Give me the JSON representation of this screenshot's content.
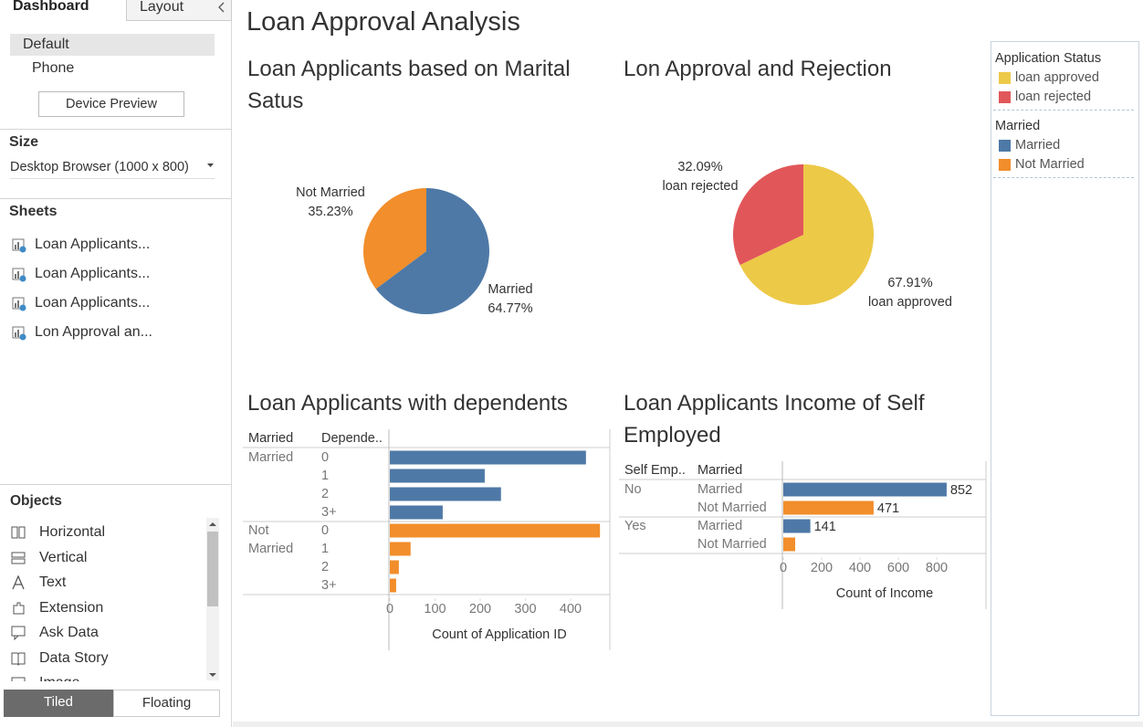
{
  "sidebar": {
    "tabs": [
      "Dashboard",
      "Layout"
    ],
    "device": {
      "options": [
        "Default",
        "Phone"
      ],
      "button": "Device Preview"
    },
    "size": {
      "heading": "Size",
      "value": "Desktop Browser (1000 x 800)"
    },
    "sheets": {
      "heading": "Sheets",
      "items": [
        "Loan Applicants...",
        "Loan Applicants...",
        "Loan Applicants...",
        "Lon Approval an..."
      ]
    },
    "objects": {
      "heading": "Objects",
      "items": [
        "Horizontal",
        "Vertical",
        "Text",
        "Extension",
        "Ask Data",
        "Data Story",
        "Image"
      ]
    },
    "layout_modes": [
      "Tiled",
      "Floating"
    ]
  },
  "dashboard": {
    "title": "Loan Approval Analysis"
  },
  "legends": [
    {
      "title": "Application Status",
      "items": [
        {
          "name": "loan approved",
          "color": "#edc948"
        },
        {
          "name": "loan rejected",
          "color": "#e15759"
        }
      ]
    },
    {
      "title": "Married",
      "items": [
        {
          "name": "Married",
          "color": "#4e79a7"
        },
        {
          "name": "Not Married",
          "color": "#f28e2b"
        }
      ]
    }
  ],
  "chart_data": [
    {
      "type": "pie",
      "title": "Loan Applicants based on Marital Satus",
      "categories": [
        "Married",
        "Not Married"
      ],
      "values": [
        64.77,
        35.23
      ],
      "value_labels": [
        "64.77%",
        "35.23%"
      ],
      "colors": [
        "#4e79a7",
        "#f28e2b"
      ]
    },
    {
      "type": "pie",
      "title": "Lon Approval and Rejection",
      "categories": [
        "loan approved",
        "loan rejected"
      ],
      "values": [
        67.91,
        32.09
      ],
      "value_labels": [
        "67.91%",
        "32.09%"
      ],
      "colors": [
        "#edc948",
        "#e15759"
      ]
    },
    {
      "type": "bar",
      "orientation": "horizontal",
      "title": "Loan Applicants with dependents",
      "row_headers": [
        "Married",
        "Depende.."
      ],
      "row_grouping": "series",
      "categories": [
        "0",
        "1",
        "2",
        "3+"
      ],
      "series": [
        {
          "name": "Married",
          "color": "#4e79a7",
          "values": [
            434,
            210,
            246,
            117
          ]
        },
        {
          "name": "Not Married",
          "color": "#f28e2b",
          "values": [
            465,
            46,
            20,
            14
          ]
        }
      ],
      "xlim": [
        0,
        470
      ],
      "xticks": [
        0,
        100,
        200,
        300,
        400
      ],
      "xlabel": "Count of Application ID",
      "grid": false
    },
    {
      "type": "bar",
      "orientation": "horizontal",
      "title": "Loan Applicants Income of Self Employed",
      "row_headers": [
        "Self Emp..",
        "Married"
      ],
      "row_grouping": "categories",
      "categories": [
        "No",
        "Yes"
      ],
      "series": [
        {
          "name": "Married",
          "color": "#4e79a7",
          "values": [
            852,
            141
          ],
          "value_labels": [
            "852",
            "141"
          ]
        },
        {
          "name": "Not Married",
          "color": "#f28e2b",
          "values": [
            471,
            62
          ],
          "value_labels": [
            "471",
            null
          ]
        }
      ],
      "xlim": [
        0,
        1060
      ],
      "xticks": [
        0,
        200,
        400,
        600,
        800
      ],
      "xlabel": "Count of Income",
      "grid": false
    }
  ]
}
